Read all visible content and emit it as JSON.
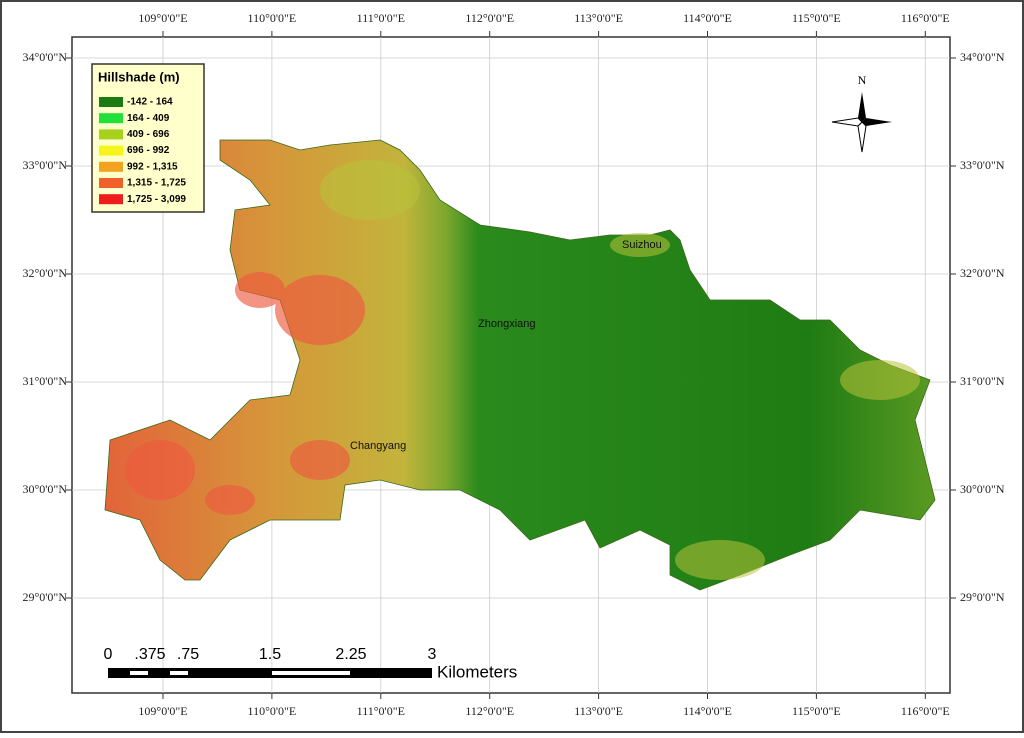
{
  "map": {
    "longitude_labels": [
      "109°0'0\"E",
      "110°0'0\"E",
      "111°0'0\"E",
      "112°0'0\"E",
      "113°0'0\"E",
      "114°0'0\"E",
      "115°0'0\"E",
      "116°0'0\"E"
    ],
    "latitude_labels": [
      "34°0'0\"N",
      "33°0'0\"N",
      "32°0'0\"N",
      "31°0'0\"N",
      "30°0'0\"N",
      "29°0'0\"N"
    ],
    "legend": {
      "title": "Hillshade (m)",
      "items": [
        {
          "label": "-142 - 164",
          "color": "#1d7a12"
        },
        {
          "label": "164 - 409",
          "color": "#22e03a"
        },
        {
          "label": "409 - 696",
          "color": "#a6d21c"
        },
        {
          "label": "696 - 992",
          "color": "#f5f51c"
        },
        {
          "label": "992 - 1,315",
          "color": "#f2a21c"
        },
        {
          "label": "1,315 - 1,725",
          "color": "#f0602a"
        },
        {
          "label": "1,725 - 3,099",
          "color": "#ee1c1c"
        }
      ]
    },
    "places": [
      "Suizhou",
      "Zhongxiang",
      "Changyang"
    ],
    "north_label": "N",
    "scale_bar": {
      "labels": [
        "0",
        ".375",
        ".75",
        "1.5",
        "2.25",
        "3"
      ],
      "unit": "Kilometers"
    }
  }
}
